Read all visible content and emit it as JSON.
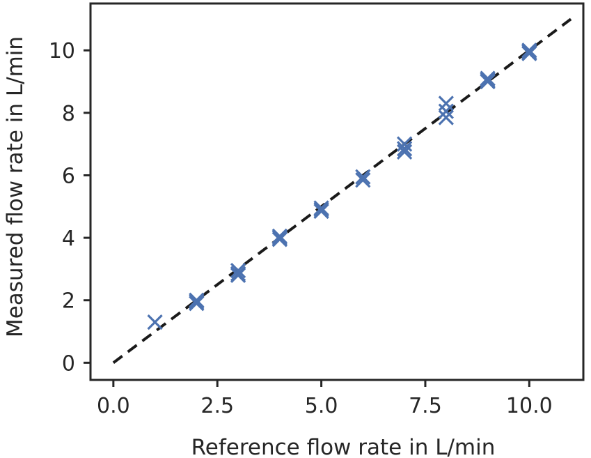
{
  "chart_data": {
    "type": "scatter",
    "title": "",
    "xlabel": "Reference flow rate in L/min",
    "ylabel": "Measured flow rate in L/min",
    "xlim": [
      -0.55,
      11.3
    ],
    "ylim": [
      -0.55,
      11.5
    ],
    "xticks": [
      0.0,
      2.5,
      5.0,
      7.5,
      10.0
    ],
    "xtick_labels": [
      "0.0",
      "2.5",
      "5.0",
      "7.5",
      "10.0"
    ],
    "yticks": [
      0,
      2,
      4,
      6,
      8,
      10
    ],
    "ytick_labels": [
      "0",
      "2",
      "4",
      "6",
      "8",
      "10"
    ],
    "grid": false,
    "marker": "x",
    "colors": {
      "points": "#4C72B0",
      "reference_line": "#1a1a1a",
      "axes": "#262626"
    },
    "series": [
      {
        "points": [
          {
            "x": 1,
            "y": 1.3
          },
          {
            "x": 2,
            "y": 1.95
          },
          {
            "x": 2,
            "y": 2.0
          },
          {
            "x": 2,
            "y": 1.9
          },
          {
            "x": 3,
            "y": 2.95
          },
          {
            "x": 3,
            "y": 2.85
          },
          {
            "x": 3,
            "y": 2.8
          },
          {
            "x": 4,
            "y": 4.0
          },
          {
            "x": 4,
            "y": 3.95
          },
          {
            "x": 4,
            "y": 4.05
          },
          {
            "x": 5,
            "y": 4.9
          },
          {
            "x": 5,
            "y": 4.85
          },
          {
            "x": 5,
            "y": 4.95
          },
          {
            "x": 6,
            "y": 5.95
          },
          {
            "x": 6,
            "y": 5.85
          },
          {
            "x": 7,
            "y": 7.0
          },
          {
            "x": 7,
            "y": 6.85
          },
          {
            "x": 7,
            "y": 6.75
          },
          {
            "x": 8,
            "y": 8.3
          },
          {
            "x": 8,
            "y": 8.05
          },
          {
            "x": 8,
            "y": 7.85
          },
          {
            "x": 9,
            "y": 9.1
          },
          {
            "x": 9,
            "y": 9.05
          },
          {
            "x": 9,
            "y": 9.0
          },
          {
            "x": 10,
            "y": 9.95
          },
          {
            "x": 10,
            "y": 9.9
          },
          {
            "x": 10,
            "y": 10.0
          }
        ]
      }
    ],
    "reference_line": {
      "style": "dashed",
      "x": [
        0,
        11
      ],
      "y": [
        0,
        11
      ]
    }
  }
}
